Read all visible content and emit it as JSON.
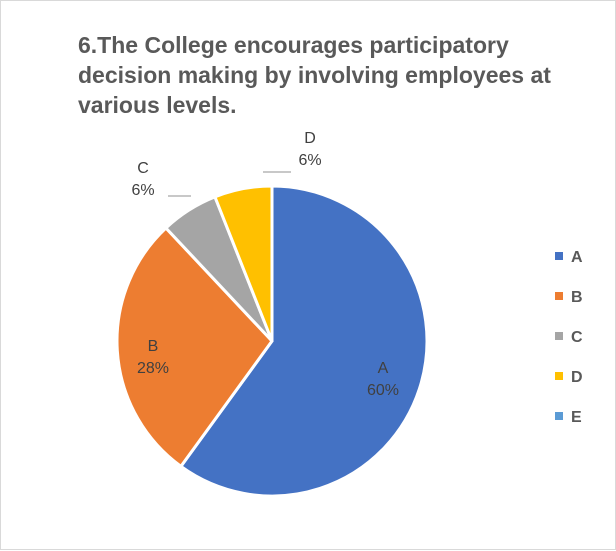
{
  "chart_data": {
    "type": "pie",
    "title": "6.The College encourages participatory decision making by involving employees at various levels.",
    "categories": [
      "A",
      "B",
      "C",
      "D",
      "E"
    ],
    "values": [
      60,
      28,
      6,
      6,
      0
    ],
    "data_labels": [
      "60%",
      "28%",
      "6%",
      "6%",
      ""
    ],
    "colors": [
      "#4472c4",
      "#ed7d31",
      "#a5a5a5",
      "#ffc000",
      "#5b9bd5"
    ],
    "legend_position": "right"
  }
}
